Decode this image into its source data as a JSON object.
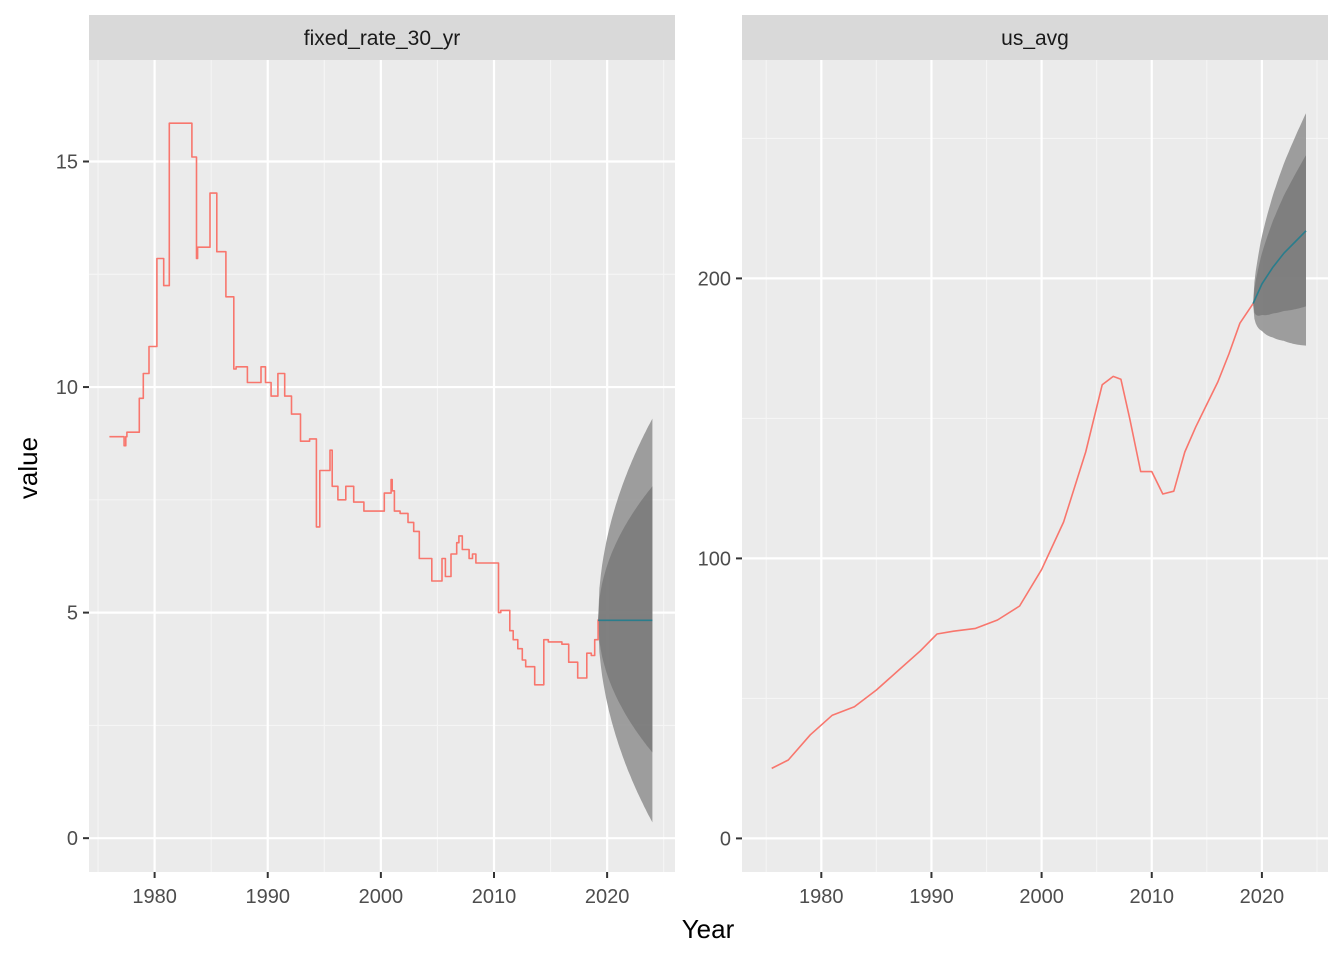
{
  "figure": {
    "xlabel": "Year",
    "ylabel": "value"
  },
  "colors": {
    "panel_background": "#ebebeb",
    "strip_background": "#d9d9d9",
    "grid_major": "#ffffff",
    "grid_minor": "#f5f5f5",
    "history_line": "#f8766d",
    "forecast_line": "#2a7d8c",
    "interval_95": "#999999",
    "interval_80": "#7a7a7a"
  },
  "chart_data": [
    {
      "type": "line",
      "facet": "fixed_rate_30_yr",
      "xlabel": "Year",
      "ylabel": "value",
      "xlim": [
        1974.2,
        2026.0
      ],
      "ylim": [
        -0.75,
        17.25
      ],
      "x_ticks": [
        1980,
        1990,
        2000,
        2010,
        2020
      ],
      "y_ticks": [
        0,
        5,
        10,
        15
      ],
      "step": true,
      "grid": true,
      "series": [
        {
          "role": "history",
          "x": [
            1976.0,
            1977.2,
            1977.3,
            1977.45,
            1977.55,
            1978.5,
            1978.65,
            1979.0,
            1979.5,
            1980.2,
            1980.5,
            1980.8,
            1981.3,
            1982.0,
            1983.3,
            1983.7,
            1983.8,
            1984.4,
            1984.9,
            1985.5,
            1986.3,
            1987.0,
            1987.2,
            1988.0,
            1988.2,
            1989.4,
            1989.8,
            1990.3,
            1990.9,
            1991.5,
            1992.1,
            1992.9,
            1993.7,
            1994.3,
            1994.6,
            1995.5,
            1995.7,
            1996.2,
            1996.9,
            1997.6,
            1998.5,
            2000.3,
            2000.9,
            2001.0,
            2001.2,
            2001.7,
            2002.4,
            2002.9,
            2003.4,
            2004.2,
            2004.5,
            2005.4,
            2005.7,
            2006.2,
            2006.7,
            2006.9,
            2007.2,
            2007.8,
            2008.1,
            2008.4,
            2009.9,
            2010.4,
            2010.6,
            2011.4,
            2011.7,
            2012.1,
            2012.5,
            2012.8,
            2013.6,
            2014.4,
            2014.8,
            2016.0,
            2016.6,
            2016.9,
            2017.4,
            2018.2,
            2018.6,
            2018.9,
            2019.2
          ],
          "values": [
            8.9,
            8.9,
            8.7,
            8.9,
            9.0,
            9.0,
            9.75,
            10.3,
            10.9,
            12.85,
            12.85,
            12.25,
            15.85,
            15.85,
            15.1,
            12.85,
            13.1,
            13.1,
            14.3,
            13.0,
            12.0,
            10.4,
            10.45,
            10.45,
            10.1,
            10.45,
            10.1,
            9.8,
            10.3,
            9.8,
            9.4,
            8.8,
            8.85,
            6.9,
            8.15,
            8.6,
            7.8,
            7.5,
            7.8,
            7.45,
            7.25,
            7.65,
            7.95,
            7.7,
            7.25,
            7.2,
            7.0,
            6.8,
            6.2,
            6.2,
            5.7,
            6.2,
            5.8,
            6.3,
            6.55,
            6.7,
            6.4,
            6.2,
            6.3,
            6.1,
            6.1,
            5.0,
            5.05,
            4.6,
            4.4,
            4.2,
            3.95,
            3.8,
            3.4,
            4.4,
            4.35,
            4.3,
            3.9,
            3.9,
            3.55,
            4.1,
            4.05,
            4.4,
            4.85
          ]
        },
        {
          "role": "forecast",
          "x": [
            2019.2,
            2024.0
          ],
          "values": [
            4.83,
            4.83
          ]
        }
      ],
      "intervals": [
        {
          "level": "95",
          "upper_end": 9.3,
          "lower_end": 0.35
        },
        {
          "level": "80",
          "upper_end": 7.8,
          "lower_end": 1.9
        }
      ]
    },
    {
      "type": "line",
      "facet": "us_avg",
      "xlabel": "Year",
      "ylabel": "value",
      "xlim": [
        1972.8,
        2026.0
      ],
      "ylim": [
        -12,
        278
      ],
      "x_ticks": [
        1980,
        1990,
        2000,
        2010,
        2020
      ],
      "y_ticks": [
        0,
        100,
        200
      ],
      "grid": true,
      "series": [
        {
          "role": "history",
          "x": [
            1975.5,
            1977.0,
            1979.0,
            1981.0,
            1983.0,
            1985.0,
            1987.0,
            1989.0,
            1990.5,
            1992.0,
            1994.0,
            1996.0,
            1998.0,
            2000.0,
            2002.0,
            2004.0,
            2005.5,
            2006.5,
            2007.2,
            2008.0,
            2009.0,
            2010.0,
            2011.0,
            2012.0,
            2013.0,
            2014.0,
            2015.0,
            2016.0,
            2017.0,
            2018.0,
            2019.2
          ],
          "values": [
            25,
            28,
            37,
            44,
            47,
            53,
            60,
            67,
            73,
            74,
            75,
            78,
            83,
            96,
            113,
            138,
            162,
            165,
            164,
            150,
            131,
            131,
            123,
            124,
            138,
            147,
            155,
            163,
            173,
            184,
            191
          ]
        },
        {
          "role": "forecast",
          "x": [
            2019.2,
            2020.0,
            2021.0,
            2022.0,
            2023.0,
            2024.0
          ],
          "values": [
            191,
            198,
            204,
            209,
            213,
            217
          ]
        }
      ],
      "intervals": [
        {
          "level": "95",
          "upper_end": 259,
          "lower_end": 176
        },
        {
          "level": "80",
          "upper_end": 244,
          "lower_end": 190
        }
      ]
    }
  ]
}
